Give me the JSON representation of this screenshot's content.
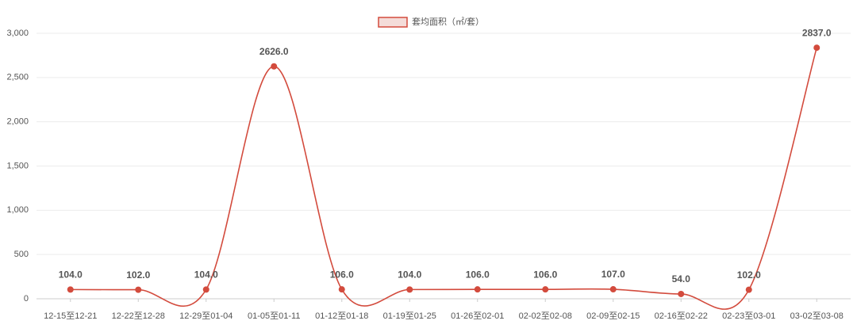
{
  "chart_data": {
    "type": "line",
    "categories": [
      "12-15至12-21",
      "12-22至12-28",
      "12-29至01-04",
      "01-05至01-11",
      "01-12至01-18",
      "01-19至01-25",
      "01-26至02-01",
      "02-02至02-08",
      "02-09至02-15",
      "02-16至02-22",
      "02-23至03-01",
      "03-02至03-08"
    ],
    "series": [
      {
        "name": "套均面积（㎡/套）",
        "color": "#d34b3d",
        "values": [
          104,
          102,
          104,
          2626,
          106,
          104,
          106,
          106,
          107,
          54,
          102,
          2837
        ],
        "value_labels": [
          "104.0",
          "102.0",
          "104.0",
          "2626.0",
          "106.0",
          "104.0",
          "106.0",
          "106.0",
          "107.0",
          "54.0",
          "102.0",
          "2837.0"
        ]
      }
    ],
    "ylim": [
      0,
      3000
    ],
    "yticks": [
      0,
      500,
      {
        "value": 1000,
        "label": "1,000"
      },
      {
        "value": 1500,
        "label": "1,500"
      },
      {
        "value": 2000,
        "label": "2,000"
      },
      {
        "value": 2500,
        "label": "2,500"
      },
      {
        "value": 3000,
        "label": "3,000"
      }
    ],
    "grid": true,
    "smooth": true,
    "legend": "top"
  }
}
